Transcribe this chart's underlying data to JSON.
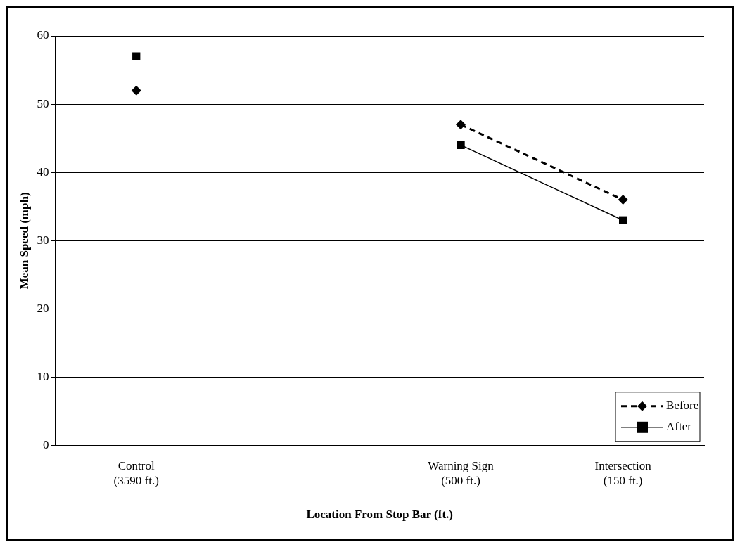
{
  "chart_data": {
    "type": "line",
    "xlabel": "Location From Stop Bar (ft.)",
    "ylabel": "Mean Speed (mph)",
    "categories": [
      "Control\n(3590 ft.)",
      null,
      "Warning Sign\n(500 ft.)",
      "Intersection\n(150 ft.)"
    ],
    "series": [
      {
        "name": "Before",
        "color": "#000000",
        "values": [
          52,
          null,
          47,
          36
        ],
        "marker": "diamond",
        "line_style": "dashed"
      },
      {
        "name": "After",
        "color": "#000000",
        "values": [
          57,
          null,
          44,
          33
        ],
        "marker": "square",
        "line_style": "solid"
      }
    ],
    "ylim": [
      0,
      60
    ],
    "yticks": [
      0,
      10,
      20,
      30,
      40,
      50,
      60
    ],
    "grid": "y",
    "legend": "bottom right"
  }
}
